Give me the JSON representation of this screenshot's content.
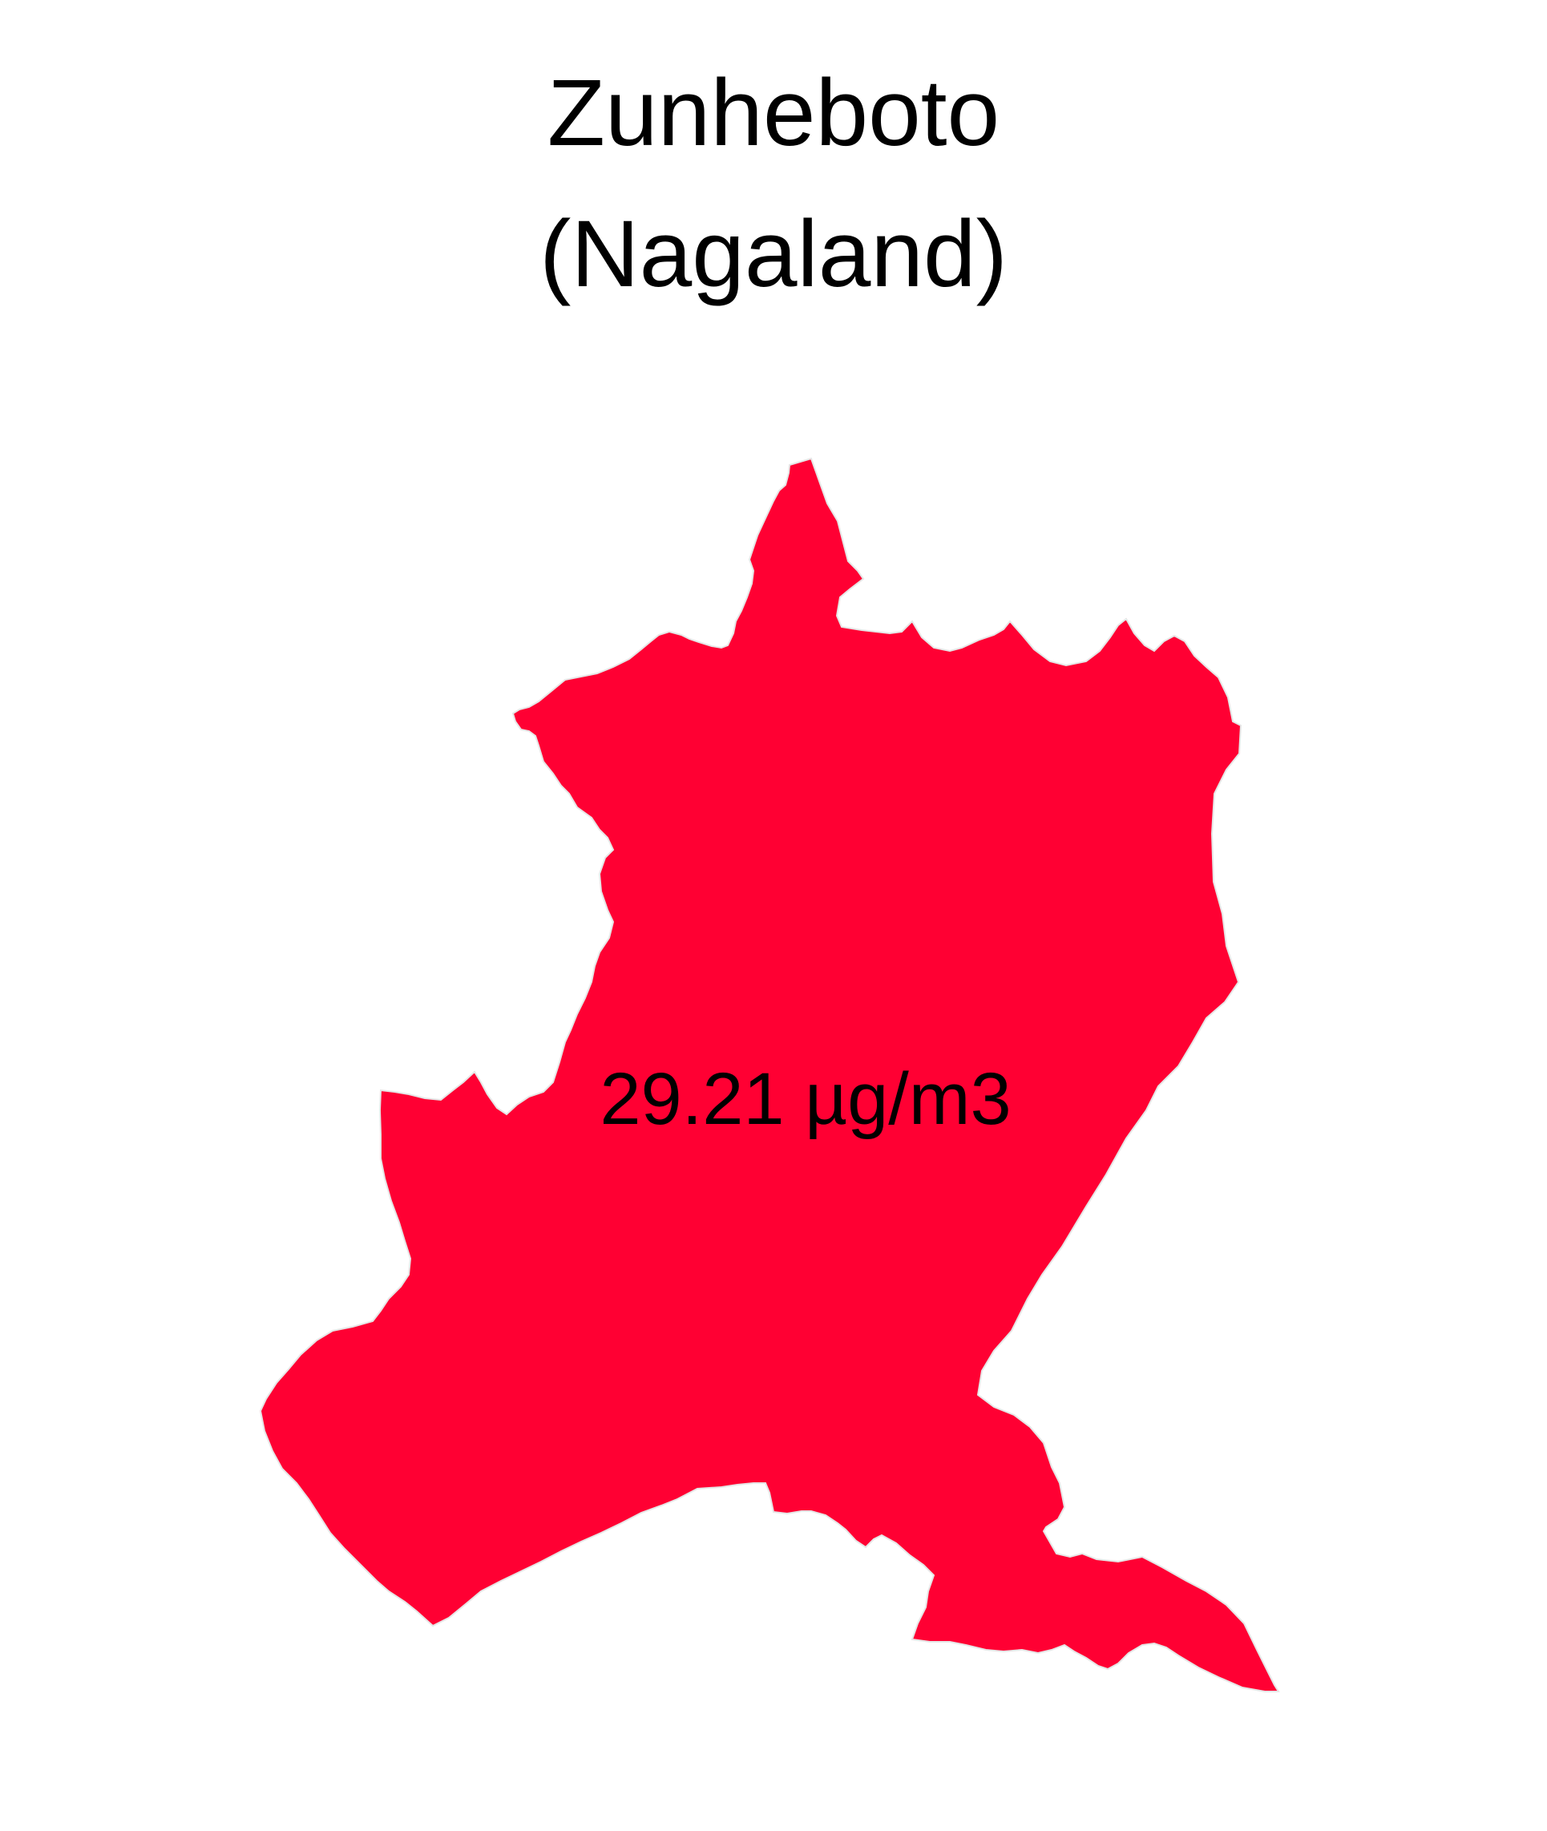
{
  "map": {
    "district": "Zunheboto",
    "state": "(Nagaland)",
    "value_label": "29.21 µg/m3",
    "fill_color": "#ff0033",
    "stroke_color": "#e6e6e6"
  }
}
